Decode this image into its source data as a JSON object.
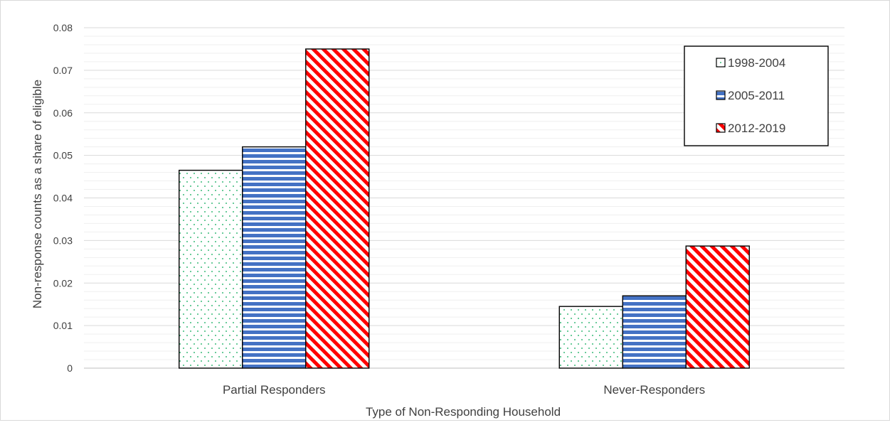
{
  "chart_data": {
    "type": "bar",
    "title": "",
    "xlabel": "Type of Non-Responding Household",
    "ylabel": "Non-response counts as a share of eligible",
    "categories": [
      "Partial Responders",
      "Never-Responders"
    ],
    "ylim": [
      0,
      0.08
    ],
    "yticks": [
      "0",
      "0.01",
      "0.02",
      "0.03",
      "0.04",
      "0.05",
      "0.06",
      "0.07",
      "0.08"
    ],
    "grid": true,
    "legend_position": "top-right",
    "series": [
      {
        "name": "1998-2004",
        "values": [
          0.0465,
          0.0145
        ],
        "pattern": "dots",
        "color": "#00a651"
      },
      {
        "name": "2005-2011",
        "values": [
          0.052,
          0.017
        ],
        "pattern": "horizontal-stripes",
        "color": "#4472c4"
      },
      {
        "name": "2012-2019",
        "values": [
          0.075,
          0.0287
        ],
        "pattern": "diagonal-stripes",
        "color": "#ff0000"
      }
    ]
  }
}
